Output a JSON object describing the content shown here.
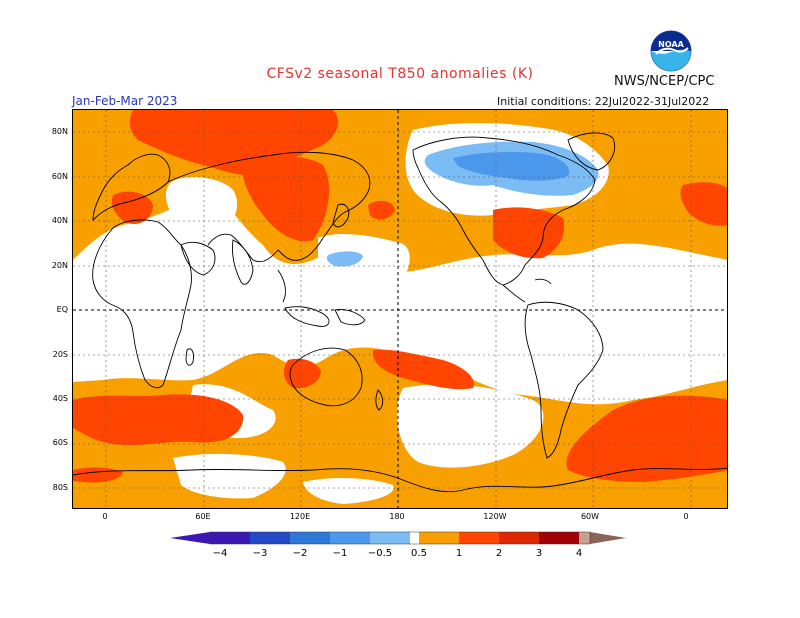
{
  "header": {
    "title": "CFSv2 seasonal T850 anomalies (K)",
    "period": "Jan-Feb-Mar 2023",
    "agency": "NWS/NCEP/CPC",
    "initial_conditions": "Initial conditions: 22Jul2022-31Jul2022",
    "logo_text": "NOAA"
  },
  "map": {
    "lat_labels": [
      "80N",
      "60N",
      "40N",
      "20N",
      "EQ",
      "20S",
      "40S",
      "60S",
      "80S"
    ],
    "lon_labels": [
      "0",
      "60E",
      "120E",
      "180",
      "120W",
      "60W",
      "0"
    ],
    "colors": {
      "neg4": "#3b18b3",
      "neg3": "#2349c8",
      "neg2": "#2f78d8",
      "neg1": "#4c98ec",
      "neg05": "#7cbcf4",
      "neutral": "#ffffff",
      "pos05": "#f8a000",
      "pos1": "#ff4500",
      "pos2": "#e02800",
      "pos3": "#a00008",
      "pos4": "#c8a090",
      "pos5": "#8b6458"
    }
  },
  "colorbar": {
    "labels": [
      "−4",
      "−3",
      "−2",
      "−1",
      "−0.5",
      "0.5",
      "1",
      "2",
      "3",
      "4"
    ]
  }
}
